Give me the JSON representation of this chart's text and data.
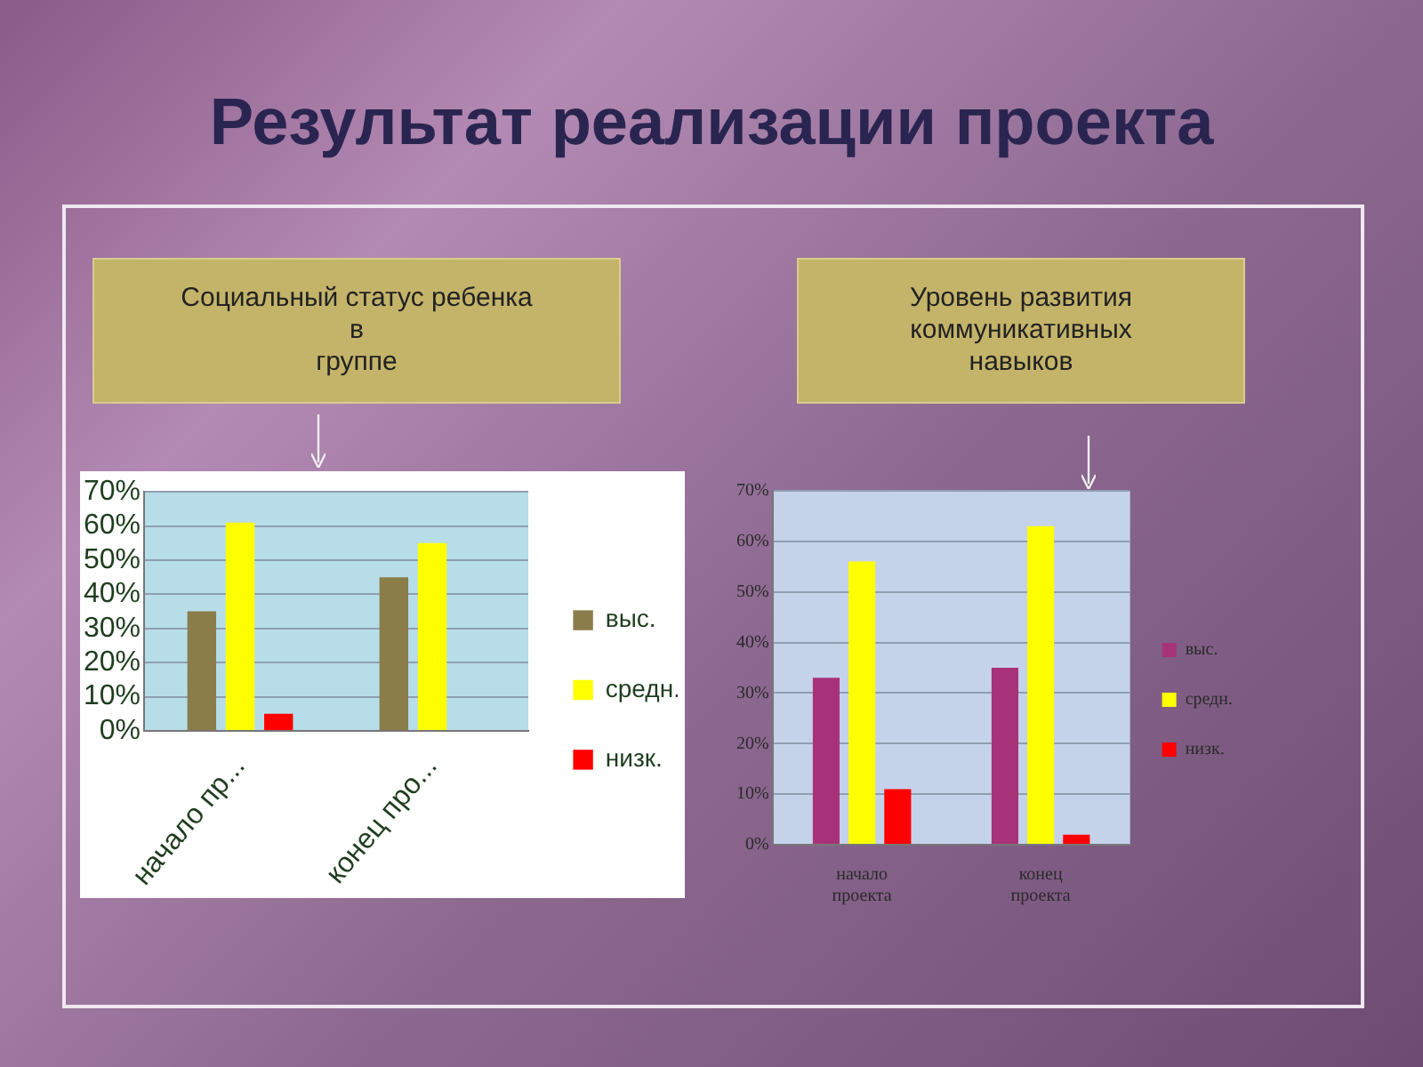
{
  "chart_data": [
    {
      "type": "bar",
      "title": "Социальный статус ребенка\nв\nгруппе",
      "annotations": [
        "Результат реализации проекта"
      ],
      "categories": [
        "начало пр...",
        "конец про..."
      ],
      "series": [
        {
          "name": "выс.",
          "color": "#8b7d4a",
          "values": [
            35,
            45
          ]
        },
        {
          "name": "средн.",
          "color": "#ffff00",
          "values": [
            61,
            55
          ]
        },
        {
          "name": "низк.",
          "color": "#ff0000",
          "values": [
            5,
            0
          ]
        }
      ],
      "ylim": [
        0,
        70
      ],
      "yticks": [
        {
          "value": 0,
          "label": "0%"
        },
        {
          "value": 10,
          "label": "10%"
        },
        {
          "value": 20,
          "label": "20%"
        },
        {
          "value": 30,
          "label": "30%"
        },
        {
          "value": 40,
          "label": "40%"
        },
        {
          "value": 50,
          "label": "50%"
        },
        {
          "value": 60,
          "label": "60%"
        },
        {
          "value": 70,
          "label": "70%"
        }
      ],
      "grid": "y",
      "legend": "right"
    },
    {
      "type": "bar",
      "title": "Уровень развития\nкоммуникативных\nнавыков",
      "categories": [
        "начало проекта",
        "конец проекта"
      ],
      "series": [
        {
          "name": "выс.",
          "color": "#a8327a",
          "values": [
            33,
            35
          ]
        },
        {
          "name": "средн.",
          "color": "#ffff00",
          "values": [
            56,
            63
          ]
        },
        {
          "name": "низк.",
          "color": "#ff0000",
          "values": [
            11,
            2
          ]
        }
      ],
      "ylim": [
        0,
        70
      ],
      "yticks": [
        {
          "value": 0,
          "label": "0%"
        },
        {
          "value": 10,
          "label": "10%"
        },
        {
          "value": 20,
          "label": "20%"
        },
        {
          "value": 30,
          "label": "30%"
        },
        {
          "value": 40,
          "label": "40%"
        },
        {
          "value": 50,
          "label": "50%"
        },
        {
          "value": 60,
          "label": "60%"
        },
        {
          "value": 70,
          "label": "70%"
        }
      ],
      "grid": "y",
      "legend": "right"
    }
  ]
}
